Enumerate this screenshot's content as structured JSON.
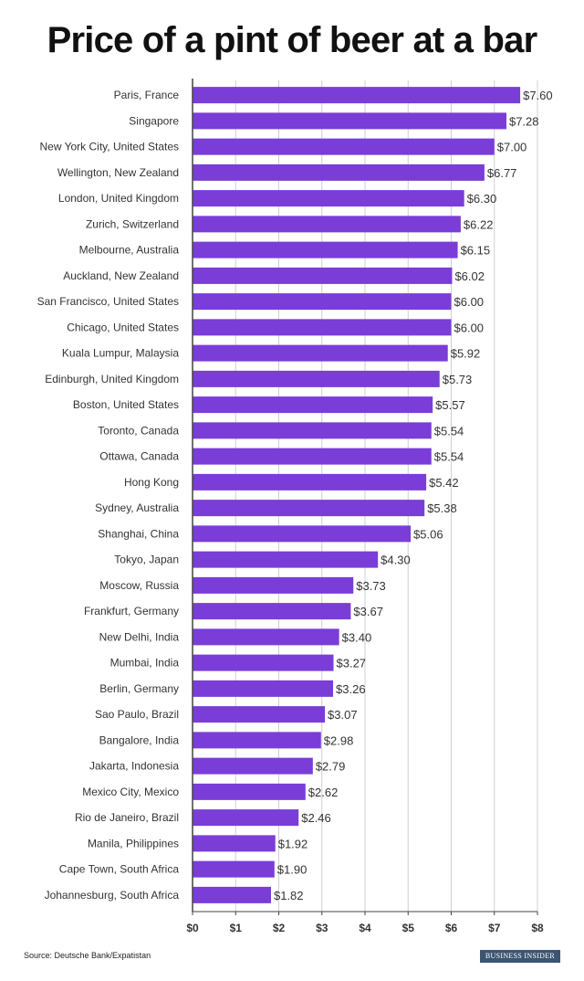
{
  "title": "Price of a pint of beer at a bar",
  "source": "Source: Deutsche Bank/Expatistan",
  "brand": "BUSINESS INSIDER",
  "colors": {
    "bar": "#7a3dd8",
    "grid": "#cfcfcf",
    "axis": "#444444",
    "text": "#333333"
  },
  "chart_data": {
    "type": "bar",
    "orientation": "horizontal",
    "title": "Price of a pint of beer at a bar",
    "xlabel": "",
    "ylabel": "",
    "xlim": [
      0,
      8
    ],
    "x_ticks": [
      "$0",
      "$1",
      "$2",
      "$3",
      "$4",
      "$5",
      "$6",
      "$7",
      "$8"
    ],
    "grid": true,
    "categories": [
      "Paris, France",
      "Singapore",
      "New York City, United States",
      "Wellington, New Zealand",
      "London, United Kingdom",
      "Zurich, Switzerland",
      "Melbourne, Australia",
      "Auckland, New Zealand",
      "San Francisco, United States",
      "Chicago, United States",
      "Kuala Lumpur, Malaysia",
      "Edinburgh, United Kingdom",
      "Boston, United States",
      "Toronto, Canada",
      "Ottawa, Canada",
      "Hong Kong",
      "Sydney, Australia",
      "Shanghai, China",
      "Tokyo, Japan",
      "Moscow, Russia",
      "Frankfurt, Germany",
      "New Delhi, India",
      "Mumbai, India",
      "Berlin, Germany",
      "Sao Paulo, Brazil",
      "Bangalore, India",
      "Jakarta, Indonesia",
      "Mexico City, Mexico",
      "Rio de Janeiro, Brazil",
      "Manila, Philippines",
      "Cape Town, South Africa",
      "Johannesburg, South Africa"
    ],
    "values": [
      7.6,
      7.28,
      7.0,
      6.77,
      6.3,
      6.22,
      6.15,
      6.02,
      6.0,
      6.0,
      5.92,
      5.73,
      5.57,
      5.54,
      5.54,
      5.42,
      5.38,
      5.06,
      4.3,
      3.73,
      3.67,
      3.4,
      3.27,
      3.26,
      3.07,
      2.98,
      2.79,
      2.62,
      2.46,
      1.92,
      1.9,
      1.82
    ],
    "value_labels": [
      "$7.60",
      "$7.28",
      "$7.00",
      "$6.77",
      "$6.30",
      "$6.22",
      "$6.15",
      "$6.02",
      "$6.00",
      "$6.00",
      "$5.92",
      "$5.73",
      "$5.57",
      "$5.54",
      "$5.54",
      "$5.42",
      "$5.38",
      "$5.06",
      "$4.30",
      "$3.73",
      "$3.67",
      "$3.40",
      "$3.27",
      "$3.26",
      "$3.07",
      "$2.98",
      "$2.79",
      "$2.62",
      "$2.46",
      "$1.92",
      "$1.90",
      "$1.82"
    ]
  }
}
